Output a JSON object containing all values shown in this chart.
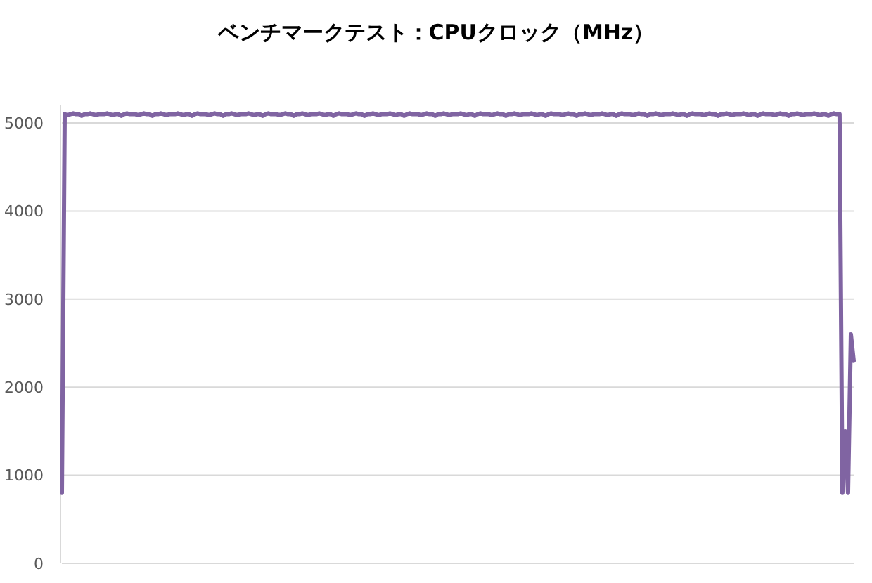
{
  "chart_data": {
    "type": "line",
    "title": "ベンチマークテスト：CPUクロック（MHz）",
    "categories": [
      null,
      null,
      null,
      null,
      null,
      null,
      null,
      null,
      null,
      null,
      null,
      null,
      null,
      null,
      null,
      null,
      null,
      null,
      null,
      null,
      null,
      null,
      null,
      null,
      null,
      null,
      null,
      null,
      null,
      null,
      null,
      null,
      null,
      null,
      null,
      null,
      null,
      null,
      null,
      null,
      null,
      null,
      null,
      null,
      null,
      null,
      null,
      null,
      null,
      null,
      null,
      null,
      null,
      null,
      null,
      null,
      null,
      null,
      null,
      null,
      null,
      null,
      null,
      null,
      null,
      null,
      null,
      null,
      null,
      null,
      null,
      null,
      null,
      null,
      null,
      null,
      null,
      null,
      null,
      null,
      null,
      null,
      null,
      null,
      null,
      null,
      null,
      null,
      null,
      null,
      null,
      null,
      null,
      null,
      null,
      null,
      null,
      null,
      null,
      null,
      null,
      null,
      null,
      null,
      null,
      null,
      null,
      null,
      null,
      null,
      null,
      null,
      null,
      null,
      null,
      null,
      null,
      null,
      null,
      null,
      null,
      null,
      null,
      null,
      null,
      null,
      null,
      null,
      null,
      null,
      null,
      null,
      null,
      null,
      null,
      null,
      null,
      null,
      null,
      null,
      null,
      null,
      null,
      null,
      null,
      null,
      null,
      null,
      null,
      null,
      null,
      null,
      null,
      null,
      null,
      null,
      null,
      null,
      null,
      null,
      null,
      null,
      null,
      null,
      null,
      null,
      null,
      null,
      null,
      null,
      null,
      null,
      null,
      null,
      null,
      null,
      null,
      null,
      null,
      null,
      null,
      null,
      null,
      null,
      null,
      null,
      null,
      null,
      null,
      null,
      null,
      null,
      null,
      null,
      null,
      null,
      null,
      null,
      null,
      null,
      null,
      null,
      null,
      null,
      null,
      null,
      null,
      null,
      null,
      null,
      null,
      null,
      null,
      null,
      null,
      null,
      null,
      null,
      null,
      null,
      null,
      null,
      null,
      null,
      null,
      null,
      null,
      null,
      null,
      null,
      null,
      null,
      null,
      null,
      null,
      null,
      null,
      null,
      null,
      null,
      null,
      null,
      null,
      null,
      null,
      null,
      null,
      null,
      null,
      null,
      null,
      null,
      null,
      null,
      null,
      null,
      null,
      null,
      null,
      null,
      null,
      null,
      null,
      null,
      null,
      null,
      null,
      null,
      null,
      null,
      null,
      null,
      null,
      null,
      null,
      null,
      null,
      null,
      null,
      null,
      null
    ],
    "values": [
      800,
      5100,
      5090,
      5100,
      5110,
      5100,
      5100,
      5080,
      5100,
      5100,
      5110,
      5100,
      5090,
      5100,
      5100,
      5100,
      5110,
      5100,
      5090,
      5100,
      5100,
      5080,
      5100,
      5110,
      5100,
      5100,
      5100,
      5090,
      5100,
      5110,
      5100,
      5100,
      5080,
      5100,
      5100,
      5110,
      5100,
      5090,
      5100,
      5100,
      5100,
      5110,
      5100,
      5090,
      5100,
      5100,
      5080,
      5100,
      5110,
      5100,
      5100,
      5100,
      5090,
      5100,
      5110,
      5100,
      5100,
      5080,
      5100,
      5100,
      5110,
      5100,
      5090,
      5100,
      5100,
      5100,
      5110,
      5100,
      5090,
      5100,
      5100,
      5080,
      5100,
      5110,
      5100,
      5100,
      5100,
      5090,
      5100,
      5110,
      5100,
      5100,
      5080,
      5100,
      5100,
      5110,
      5100,
      5090,
      5100,
      5100,
      5100,
      5110,
      5100,
      5090,
      5100,
      5100,
      5080,
      5100,
      5110,
      5100,
      5100,
      5100,
      5090,
      5100,
      5110,
      5100,
      5100,
      5080,
      5100,
      5100,
      5110,
      5100,
      5090,
      5100,
      5100,
      5100,
      5110,
      5100,
      5090,
      5100,
      5100,
      5080,
      5100,
      5110,
      5100,
      5100,
      5100,
      5090,
      5100,
      5110,
      5100,
      5100,
      5080,
      5100,
      5100,
      5110,
      5100,
      5090,
      5100,
      5100,
      5100,
      5110,
      5100,
      5090,
      5100,
      5100,
      5080,
      5100,
      5110,
      5100,
      5100,
      5100,
      5090,
      5100,
      5110,
      5100,
      5100,
      5080,
      5100,
      5100,
      5110,
      5100,
      5090,
      5100,
      5100,
      5100,
      5110,
      5100,
      5090,
      5100,
      5100,
      5080,
      5100,
      5110,
      5100,
      5100,
      5100,
      5090,
      5100,
      5110,
      5100,
      5100,
      5080,
      5100,
      5100,
      5110,
      5100,
      5090,
      5100,
      5100,
      5100,
      5110,
      5100,
      5090,
      5100,
      5100,
      5080,
      5100,
      5110,
      5100,
      5100,
      5100,
      5090,
      5100,
      5110,
      5100,
      5100,
      5080,
      5100,
      5100,
      5110,
      5100,
      5090,
      5100,
      5100,
      5100,
      5110,
      5100,
      5090,
      5100,
      5100,
      5080,
      5100,
      5110,
      5100,
      5100,
      5100,
      5090,
      5100,
      5110,
      5100,
      5100,
      5080,
      5100,
      5100,
      5110,
      5100,
      5090,
      5100,
      5100,
      5100,
      5110,
      5100,
      5090,
      5100,
      5100,
      5080,
      5100,
      5110,
      5100,
      5100,
      5100,
      5090,
      5100,
      5110,
      5100,
      5100,
      5080,
      5100,
      5100,
      5110,
      5100,
      5090,
      5100,
      5100,
      5100,
      5110,
      5100,
      5090,
      5100,
      5100,
      5080,
      5100,
      5110,
      5100,
      5100,
      800,
      1500,
      800,
      2600,
      2300
    ],
    "color": "#8064a2",
    "ylim": [
      0,
      5200
    ],
    "yticks": [
      0,
      1000,
      2000,
      3000,
      4000,
      5000
    ],
    "grid": "y",
    "tick_labels": "y"
  }
}
